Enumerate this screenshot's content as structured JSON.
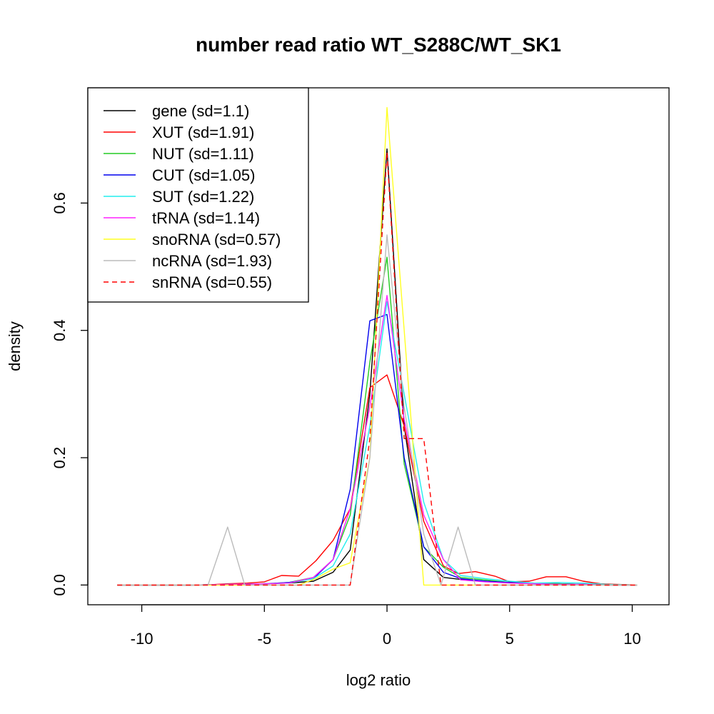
{
  "chart_data": {
    "type": "line",
    "title": "number read ratio WT_S288C/WT_SK1",
    "xlabel": "log2 ratio",
    "ylabel": "density",
    "xlim": [
      -12.2,
      11.5
    ],
    "ylim": [
      -0.031,
      0.781
    ],
    "x_ticks": [
      -10,
      -5,
      0,
      5,
      10
    ],
    "x_tick_labels": [
      "-10",
      "-5",
      "0",
      "5",
      "10"
    ],
    "y_ticks": [
      0.0,
      0.2,
      0.4,
      0.6
    ],
    "y_tick_labels": [
      "0.0",
      "0.2",
      "0.4",
      "0.6"
    ],
    "grid": false,
    "legend_position": "top-left",
    "series": [
      {
        "name": "gene (sd=1.1)",
        "color": "#000000",
        "dash": "solid",
        "x": [
          -11,
          -8,
          -5,
          -4,
          -3,
          -2.2,
          -1.5,
          -0.7,
          0,
          0.7,
          1.5,
          2.3,
          3.2,
          4,
          5,
          6,
          7,
          8,
          9,
          10.2
        ],
        "y": [
          0,
          0,
          0.002,
          0.003,
          0.006,
          0.02,
          0.055,
          0.3,
          0.685,
          0.25,
          0.04,
          0.012,
          0.008,
          0.006,
          0.004,
          0.003,
          0.002,
          0.001,
          0.001,
          0
        ]
      },
      {
        "name": "XUT (sd=1.91)",
        "color": "#ff0000",
        "dash": "solid",
        "x": [
          -11,
          -7.5,
          -6.5,
          -5.7,
          -5,
          -4.3,
          -3.6,
          -2.9,
          -2.2,
          -1.5,
          -0.7,
          0,
          0.7,
          1.5,
          2.3,
          2.9,
          3.6,
          4.4,
          5,
          5.8,
          6.5,
          7.3,
          8,
          8.7,
          9.4,
          10.2
        ],
        "y": [
          0,
          0,
          0.002,
          0.003,
          0.005,
          0.015,
          0.014,
          0.038,
          0.07,
          0.12,
          0.31,
          0.33,
          0.25,
          0.1,
          0.03,
          0.018,
          0.021,
          0.014,
          0.005,
          0.006,
          0.013,
          0.013,
          0.006,
          0.002,
          0.001,
          0
        ]
      },
      {
        "name": "NUT (sd=1.11)",
        "color": "#22cc22",
        "dash": "solid",
        "x": [
          -11,
          -8,
          -5,
          -4,
          -3,
          -2.2,
          -1.5,
          -0.7,
          0,
          0.7,
          1.5,
          2.3,
          3,
          4,
          5,
          6,
          7,
          8,
          9,
          10.2
        ],
        "y": [
          0,
          0,
          0.002,
          0.004,
          0.012,
          0.04,
          0.11,
          0.35,
          0.515,
          0.19,
          0.06,
          0.028,
          0.012,
          0.008,
          0.004,
          0.003,
          0.002,
          0.001,
          0,
          0
        ]
      },
      {
        "name": "CUT (sd=1.05)",
        "color": "#0000ee",
        "dash": "solid",
        "x": [
          -11,
          -8,
          -5,
          -4,
          -3,
          -2.2,
          -1.5,
          -0.7,
          0,
          0.7,
          1.5,
          2.3,
          3,
          4,
          5,
          6,
          7,
          8,
          9,
          10.2
        ],
        "y": [
          0,
          0,
          0.002,
          0.004,
          0.01,
          0.04,
          0.15,
          0.415,
          0.425,
          0.2,
          0.06,
          0.02,
          0.01,
          0.006,
          0.004,
          0.002,
          0.001,
          0.001,
          0,
          0
        ]
      },
      {
        "name": "SUT (sd=1.22)",
        "color": "#22eeee",
        "dash": "solid",
        "x": [
          -11,
          -8,
          -5,
          -4,
          -3,
          -2.2,
          -1.5,
          -0.7,
          0,
          0.7,
          1.5,
          2.3,
          3,
          4,
          5,
          6,
          7,
          8,
          9,
          10.2
        ],
        "y": [
          0,
          0,
          0.002,
          0.003,
          0.01,
          0.03,
          0.08,
          0.25,
          0.445,
          0.3,
          0.13,
          0.04,
          0.015,
          0.01,
          0.006,
          0.003,
          0.004,
          0.003,
          0.001,
          0
        ]
      },
      {
        "name": "tRNA (sd=1.14)",
        "color": "#ff22ff",
        "dash": "solid",
        "x": [
          -11,
          -8,
          -5,
          -4,
          -3,
          -2.2,
          -1.5,
          -0.7,
          0,
          0.7,
          1.5,
          2.3,
          3,
          4,
          5,
          6,
          7,
          8,
          9,
          10.2
        ],
        "y": [
          0,
          0,
          0.002,
          0.003,
          0.012,
          0.04,
          0.12,
          0.28,
          0.455,
          0.26,
          0.11,
          0.04,
          0.008,
          0.005,
          0.003,
          0.002,
          0.001,
          0.001,
          0,
          0
        ]
      },
      {
        "name": "snoRNA (sd=0.57)",
        "color": "#ffff22",
        "dash": "solid",
        "x": [
          -11,
          -3.6,
          -2.9,
          -2.2,
          -1.5,
          -0.7,
          0,
          0.7,
          1.5,
          2.2,
          10.2
        ],
        "y": [
          0,
          0,
          0.01,
          0.025,
          0.035,
          0.2,
          0.75,
          0.4,
          0,
          0,
          0
        ]
      },
      {
        "name": "ncRNA (sd=1.93)",
        "color": "#bbbbbb",
        "dash": "solid",
        "x": [
          -11,
          -7.3,
          -6.5,
          -5.8,
          -1.5,
          -0.7,
          0,
          0.7,
          1.5,
          2.2,
          2.9,
          3.6,
          10.2
        ],
        "y": [
          0,
          0,
          0.091,
          0,
          0,
          0.2,
          0.55,
          0.28,
          0.08,
          0,
          0.091,
          0,
          0
        ]
      },
      {
        "name": "snRNA (sd=0.55)",
        "color": "#ff0000",
        "dash": "dashed",
        "x": [
          -11,
          -1.5,
          -0.7,
          0,
          0.7,
          1.5,
          2.2,
          10.2
        ],
        "y": [
          0,
          0,
          0.23,
          0.68,
          0.23,
          0.23,
          0,
          0
        ]
      }
    ]
  }
}
